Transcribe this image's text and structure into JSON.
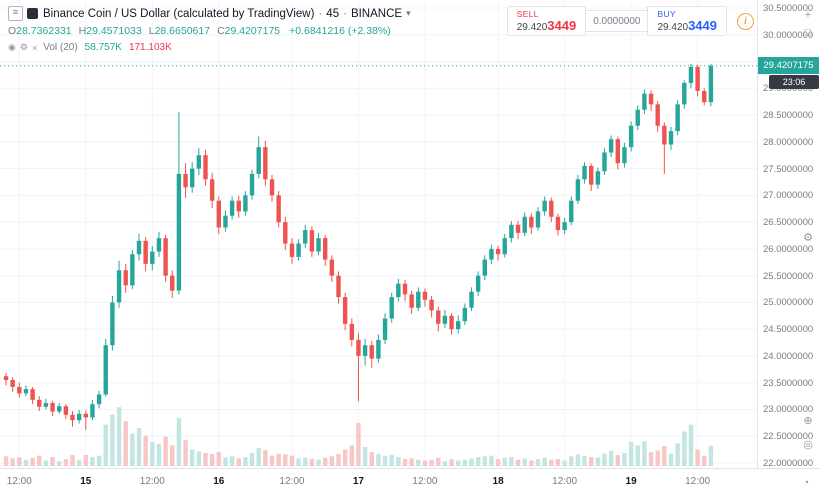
{
  "header": {
    "symbol_title": "Binance Coin / US Dollar (calculated by TradingView)",
    "sep": "·",
    "interval": "45",
    "exchange": "BINANCE",
    "ohlc": {
      "o_label": "O",
      "o": "28.7362331",
      "h_label": "H",
      "h": "29.4571033",
      "l_label": "L",
      "l": "28.6650617",
      "c_label": "C",
      "c": "29.4207175",
      "change": "+0.6841216 (+2.38%)"
    },
    "volume": {
      "label": "Vol (20)",
      "v1": "58.757K",
      "v2": "171.103K"
    }
  },
  "trade_widget": {
    "sell_label": "SELL",
    "sell_value_main": "29.420",
    "sell_value_pip": "3449",
    "spread": "0.0000000",
    "buy_label": "BUY",
    "buy_value_main": "29.420",
    "buy_value_pip": "3449"
  },
  "price_axis": {
    "labels": [
      "30.5000000",
      "30.0000000",
      "29.5000000",
      "29.0000000",
      "28.5000000",
      "28.0000000",
      "27.5000000",
      "27.0000000",
      "26.5000000",
      "26.0000000",
      "25.5000000",
      "25.0000000",
      "24.5000000",
      "24.0000000",
      "23.5000000",
      "23.0000000",
      "22.5000000",
      "22.0000000"
    ],
    "current_price": "29.4207175",
    "countdown": "23:06"
  },
  "icons": {
    "menu": "≡",
    "eye": "◉",
    "gear": "⚙",
    "close": "×",
    "caret_down": "▾",
    "plus": "+",
    "maximize": "□",
    "target": "⊕",
    "camera": "◎",
    "clock": "◔",
    "info": "i"
  },
  "colors": {
    "up": "#26a69a",
    "down": "#ef5350",
    "vol_up": "#c3e5e2",
    "vol_down": "#f7c6c5",
    "grid": "#f0f3fa",
    "axis_border": "#e0e3eb",
    "text_gray": "#787b86",
    "text_dark": "#131722",
    "sell": "#f23645",
    "buy": "#2962ff",
    "badge_countdown": "#363a45",
    "info": "#e8a33d"
  },
  "chart_data": {
    "type": "candlestick",
    "interval_minutes": 45,
    "price_axis": {
      "min": 22.0,
      "max": 30.5,
      "step": 0.5
    },
    "volume_max_k": 180,
    "time_ticks": [
      {
        "label": "12:00",
        "i": 2,
        "major": false
      },
      {
        "label": "15",
        "i": 12,
        "major": true
      },
      {
        "label": "12:00",
        "i": 22,
        "major": false
      },
      {
        "label": "16",
        "i": 32,
        "major": true
      },
      {
        "label": "12:00",
        "i": 43,
        "major": false
      },
      {
        "label": "17",
        "i": 53,
        "major": true
      },
      {
        "label": "12:00",
        "i": 63,
        "major": false
      },
      {
        "label": "18",
        "i": 74,
        "major": true
      },
      {
        "label": "12:00",
        "i": 84,
        "major": false
      },
      {
        "label": "19",
        "i": 94,
        "major": true
      },
      {
        "label": "12:00",
        "i": 104,
        "major": false
      }
    ],
    "candles": [
      [
        23.62,
        23.68,
        23.45,
        23.55,
        28
      ],
      [
        23.55,
        23.6,
        23.33,
        23.42,
        22
      ],
      [
        23.42,
        23.5,
        23.22,
        23.3,
        25
      ],
      [
        23.3,
        23.45,
        23.25,
        23.38,
        18
      ],
      [
        23.38,
        23.42,
        23.1,
        23.18,
        24
      ],
      [
        23.18,
        23.25,
        22.97,
        23.05,
        30
      ],
      [
        23.05,
        23.2,
        23.0,
        23.12,
        16
      ],
      [
        23.12,
        23.16,
        22.88,
        22.96,
        26
      ],
      [
        22.96,
        23.12,
        22.92,
        23.06,
        14
      ],
      [
        23.06,
        23.1,
        22.82,
        22.9,
        20
      ],
      [
        22.9,
        22.97,
        22.68,
        22.8,
        32
      ],
      [
        22.8,
        22.99,
        22.74,
        22.92,
        18
      ],
      [
        22.92,
        22.98,
        22.62,
        22.85,
        32
      ],
      [
        22.85,
        23.18,
        22.8,
        23.1,
        26
      ],
      [
        23.1,
        23.35,
        23.02,
        23.28,
        30
      ],
      [
        23.28,
        24.32,
        23.24,
        24.2,
        120
      ],
      [
        24.2,
        25.12,
        24.1,
        25.0,
        150
      ],
      [
        25.0,
        25.78,
        24.9,
        25.6,
        171
      ],
      [
        25.6,
        25.72,
        25.18,
        25.32,
        130
      ],
      [
        25.32,
        25.98,
        25.25,
        25.9,
        95
      ],
      [
        25.9,
        26.28,
        25.78,
        26.15,
        110
      ],
      [
        26.15,
        26.22,
        25.58,
        25.72,
        88
      ],
      [
        25.72,
        26.05,
        25.6,
        25.95,
        70
      ],
      [
        25.95,
        26.32,
        25.85,
        26.2,
        64
      ],
      [
        26.2,
        26.26,
        25.38,
        25.5,
        85
      ],
      [
        25.5,
        25.6,
        25.08,
        25.22,
        60
      ],
      [
        25.22,
        28.55,
        25.15,
        27.4,
        140
      ],
      [
        27.4,
        27.6,
        26.95,
        27.15,
        75
      ],
      [
        27.15,
        27.62,
        27.05,
        27.5,
        48
      ],
      [
        27.5,
        27.88,
        27.38,
        27.75,
        42
      ],
      [
        27.75,
        27.85,
        27.18,
        27.3,
        38
      ],
      [
        27.3,
        27.42,
        26.76,
        26.9,
        35
      ],
      [
        26.9,
        26.98,
        26.28,
        26.4,
        40
      ],
      [
        26.4,
        26.72,
        26.32,
        26.62,
        25
      ],
      [
        26.62,
        26.98,
        26.55,
        26.9,
        28
      ],
      [
        26.9,
        26.99,
        26.58,
        26.7,
        22
      ],
      [
        26.7,
        27.08,
        26.62,
        27.0,
        26
      ],
      [
        27.0,
        27.48,
        26.92,
        27.4,
        38
      ],
      [
        27.4,
        28.1,
        27.32,
        27.9,
        52
      ],
      [
        27.9,
        28.02,
        27.18,
        27.3,
        46
      ],
      [
        27.3,
        27.38,
        26.88,
        27.0,
        30
      ],
      [
        27.0,
        27.08,
        26.4,
        26.5,
        36
      ],
      [
        26.5,
        26.6,
        25.98,
        26.1,
        34
      ],
      [
        26.1,
        26.2,
        25.72,
        25.85,
        30
      ],
      [
        25.85,
        26.18,
        25.78,
        26.1,
        22
      ],
      [
        26.1,
        26.45,
        26.02,
        26.35,
        24
      ],
      [
        26.35,
        26.42,
        25.85,
        25.95,
        20
      ],
      [
        25.95,
        26.3,
        25.88,
        26.2,
        18
      ],
      [
        26.2,
        26.26,
        25.68,
        25.8,
        24
      ],
      [
        25.8,
        25.88,
        25.38,
        25.5,
        28
      ],
      [
        25.5,
        25.58,
        24.98,
        25.1,
        35
      ],
      [
        25.1,
        25.18,
        24.48,
        24.6,
        48
      ],
      [
        24.6,
        24.7,
        24.18,
        24.3,
        60
      ],
      [
        24.3,
        24.42,
        23.15,
        24.0,
        125
      ],
      [
        24.0,
        24.32,
        23.82,
        24.2,
        55
      ],
      [
        24.2,
        24.28,
        23.78,
        23.95,
        40
      ],
      [
        23.95,
        24.4,
        23.88,
        24.3,
        35
      ],
      [
        24.3,
        24.8,
        24.22,
        24.7,
        30
      ],
      [
        24.7,
        25.18,
        24.62,
        25.1,
        32
      ],
      [
        25.1,
        25.44,
        25.02,
        25.35,
        26
      ],
      [
        25.35,
        25.42,
        25.02,
        25.15,
        20
      ],
      [
        25.15,
        25.22,
        24.78,
        24.9,
        22
      ],
      [
        24.9,
        25.28,
        24.84,
        25.2,
        18
      ],
      [
        25.2,
        25.26,
        24.92,
        25.05,
        16
      ],
      [
        25.05,
        25.12,
        24.72,
        24.85,
        18
      ],
      [
        24.85,
        24.92,
        24.46,
        24.6,
        24
      ],
      [
        24.6,
        24.86,
        24.52,
        24.75,
        14
      ],
      [
        24.75,
        24.8,
        24.4,
        24.5,
        20
      ],
      [
        24.5,
        24.76,
        24.42,
        24.65,
        16
      ],
      [
        24.65,
        24.98,
        24.58,
        24.9,
        18
      ],
      [
        24.9,
        25.28,
        24.84,
        25.2,
        22
      ],
      [
        25.2,
        25.58,
        25.12,
        25.5,
        26
      ],
      [
        25.5,
        25.88,
        25.42,
        25.8,
        28
      ],
      [
        25.8,
        26.08,
        25.72,
        26.0,
        30
      ],
      [
        26.0,
        26.06,
        25.78,
        25.9,
        20
      ],
      [
        25.9,
        26.28,
        25.84,
        26.2,
        24
      ],
      [
        26.2,
        26.52,
        26.12,
        26.45,
        26
      ],
      [
        26.45,
        26.52,
        26.18,
        26.3,
        18
      ],
      [
        26.3,
        26.68,
        26.24,
        26.6,
        22
      ],
      [
        26.6,
        26.66,
        26.28,
        26.4,
        16
      ],
      [
        26.4,
        26.78,
        26.34,
        26.7,
        20
      ],
      [
        26.7,
        26.98,
        26.62,
        26.9,
        24
      ],
      [
        26.9,
        26.96,
        26.5,
        26.6,
        18
      ],
      [
        26.6,
        26.66,
        26.25,
        26.35,
        20
      ],
      [
        26.35,
        26.58,
        26.28,
        26.5,
        16
      ],
      [
        26.5,
        26.98,
        26.44,
        26.9,
        28
      ],
      [
        26.9,
        27.38,
        26.84,
        27.3,
        34
      ],
      [
        27.3,
        27.62,
        27.22,
        27.55,
        30
      ],
      [
        27.55,
        27.6,
        27.08,
        27.2,
        26
      ],
      [
        27.2,
        27.52,
        27.12,
        27.45,
        24
      ],
      [
        27.45,
        27.88,
        27.38,
        27.8,
        36
      ],
      [
        27.8,
        28.12,
        27.72,
        28.05,
        44
      ],
      [
        28.05,
        28.1,
        27.48,
        27.6,
        32
      ],
      [
        27.6,
        27.98,
        27.52,
        27.9,
        38
      ],
      [
        27.9,
        28.38,
        27.82,
        28.3,
        70
      ],
      [
        28.3,
        28.68,
        28.22,
        28.6,
        60
      ],
      [
        28.6,
        28.98,
        28.52,
        28.9,
        72
      ],
      [
        28.9,
        28.96,
        28.58,
        28.7,
        40
      ],
      [
        28.7,
        28.76,
        28.18,
        28.3,
        45
      ],
      [
        28.3,
        28.36,
        27.4,
        27.95,
        58
      ],
      [
        27.95,
        28.28,
        27.85,
        28.2,
        36
      ],
      [
        28.2,
        28.78,
        28.12,
        28.7,
        66
      ],
      [
        28.7,
        29.15,
        28.62,
        29.1,
        100
      ],
      [
        29.1,
        29.46,
        29.0,
        29.4,
        120
      ],
      [
        29.4,
        29.44,
        28.85,
        28.95,
        48
      ],
      [
        28.95,
        29.0,
        28.68,
        28.74,
        30
      ],
      [
        28.74,
        29.457,
        28.665,
        29.4207,
        59
      ]
    ]
  }
}
